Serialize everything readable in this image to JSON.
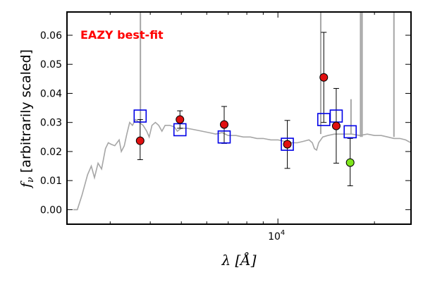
{
  "chart_data": {
    "type": "scatter",
    "annotation": "EAZY best-fit",
    "xlabel": "λ [Å]",
    "ylabel": "f_ν [arbitrarily scaled]",
    "xscale": "log",
    "xlim": [
      2200,
      26000
    ],
    "ylim": [
      -0.005,
      0.068
    ],
    "x_tick_labels": [
      {
        "value": 10000,
        "base": "10",
        "exp": "4"
      }
    ],
    "x_major_ticks": [
      10000
    ],
    "x_minor_ticks": [
      3000,
      4000,
      5000,
      6000,
      7000,
      8000,
      9000,
      20000
    ],
    "y_ticks": [
      0.0,
      0.01,
      0.02,
      0.03,
      0.04,
      0.05,
      0.06
    ],
    "y_tick_labels": [
      "0.00",
      "0.01",
      "0.02",
      "0.03",
      "0.04",
      "0.05",
      "0.06"
    ],
    "grid": false,
    "colors": {
      "model": "#a6a6a6",
      "model_flux": "#0000e6",
      "observed": "#e01010",
      "highlight": "#7ee51c",
      "annotation": "#ff0000",
      "errorbar": "#000000"
    },
    "series": [
      {
        "kind": "model_spectrum",
        "points": [
          [
            2300,
            0.0
          ],
          [
            2370,
            0.0
          ],
          [
            2450,
            0.005
          ],
          [
            2550,
            0.012
          ],
          [
            2620,
            0.015
          ],
          [
            2680,
            0.011
          ],
          [
            2750,
            0.016
          ],
          [
            2820,
            0.014
          ],
          [
            2900,
            0.021
          ],
          [
            2960,
            0.023
          ],
          [
            3020,
            0.0225
          ],
          [
            3100,
            0.022
          ],
          [
            3200,
            0.024
          ],
          [
            3250,
            0.02
          ],
          [
            3320,
            0.022
          ],
          [
            3380,
            0.026
          ],
          [
            3450,
            0.03
          ],
          [
            3520,
            0.029
          ],
          [
            3600,
            0.031
          ],
          [
            3700,
            0.03
          ],
          [
            3800,
            0.029
          ],
          [
            3900,
            0.027
          ],
          [
            3970,
            0.025
          ],
          [
            4050,
            0.029
          ],
          [
            4150,
            0.03
          ],
          [
            4250,
            0.029
          ],
          [
            4350,
            0.027
          ],
          [
            4450,
            0.029
          ],
          [
            4600,
            0.029
          ],
          [
            4750,
            0.0285
          ],
          [
            4860,
            0.027
          ],
          [
            5000,
            0.028
          ],
          [
            5200,
            0.028
          ],
          [
            5500,
            0.0275
          ],
          [
            5800,
            0.027
          ],
          [
            6100,
            0.0265
          ],
          [
            6400,
            0.026
          ],
          [
            6700,
            0.0265
          ],
          [
            7000,
            0.0255
          ],
          [
            7400,
            0.0255
          ],
          [
            7800,
            0.025
          ],
          [
            8200,
            0.025
          ],
          [
            8600,
            0.0245
          ],
          [
            9000,
            0.0245
          ],
          [
            9500,
            0.024
          ],
          [
            10000,
            0.024
          ],
          [
            10500,
            0.0235
          ],
          [
            11000,
            0.023
          ],
          [
            11500,
            0.023
          ],
          [
            12000,
            0.0235
          ],
          [
            12500,
            0.024
          ],
          [
            12800,
            0.023
          ],
          [
            13000,
            0.021
          ],
          [
            13200,
            0.0205
          ],
          [
            13400,
            0.023
          ],
          [
            13800,
            0.025
          ],
          [
            14300,
            0.0255
          ],
          [
            15000,
            0.026
          ],
          [
            16000,
            0.026
          ],
          [
            17000,
            0.026
          ],
          [
            18000,
            0.0255
          ],
          [
            19000,
            0.026
          ],
          [
            20000,
            0.0255
          ],
          [
            21000,
            0.0255
          ],
          [
            22000,
            0.025
          ],
          [
            23000,
            0.0245
          ],
          [
            24000,
            0.0245
          ],
          [
            25000,
            0.024
          ],
          [
            26000,
            0.023
          ]
        ],
        "emission_lines": [
          {
            "x": 3727,
            "base": 0.03,
            "top": 0.068
          },
          {
            "x": 13600,
            "base": 0.026,
            "top": 0.068
          },
          {
            "x": 16900,
            "base": 0.026,
            "top": 0.038
          },
          {
            "x": 18100,
            "base": 0.025,
            "top": 0.068
          },
          {
            "x": 18300,
            "base": 0.025,
            "top": 0.068
          },
          {
            "x": 23000,
            "base": 0.025,
            "top": 0.068
          }
        ]
      },
      {
        "kind": "model_photometry",
        "marker": "square",
        "points": [
          [
            3720,
            0.0322
          ],
          [
            4950,
            0.0275
          ],
          [
            6800,
            0.025
          ],
          [
            10700,
            0.0225
          ],
          [
            13900,
            0.031
          ],
          [
            15200,
            0.0322
          ],
          [
            16800,
            0.0268
          ]
        ]
      },
      {
        "kind": "observed_photometry",
        "marker": "circle",
        "points": [
          {
            "x": 3720,
            "y": 0.0237,
            "lo": 0.0172,
            "hi": 0.031
          },
          {
            "x": 4950,
            "y": 0.031,
            "lo": 0.028,
            "hi": 0.034
          },
          {
            "x": 6800,
            "y": 0.0293,
            "lo": 0.0228,
            "hi": 0.0355
          },
          {
            "x": 10700,
            "y": 0.0225,
            "lo": 0.0142,
            "hi": 0.0307
          },
          {
            "x": 13900,
            "y": 0.0455,
            "lo": 0.03,
            "hi": 0.061
          },
          {
            "x": 15200,
            "y": 0.0288,
            "lo": 0.016,
            "hi": 0.0417
          },
          {
            "x": 16800,
            "y": 0.0162,
            "lo": 0.0082,
            "hi": 0.0245,
            "highlight": true
          }
        ]
      }
    ]
  }
}
